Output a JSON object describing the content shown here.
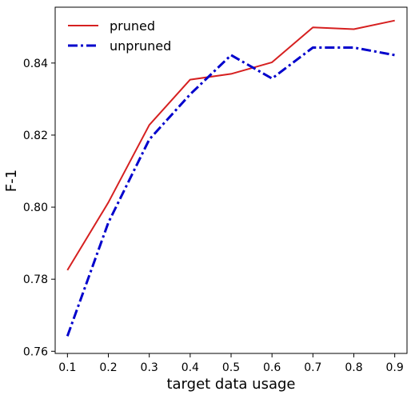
{
  "chart_data": {
    "type": "line",
    "xlabel": "target data usage",
    "ylabel": "F-1",
    "x": [
      0.1,
      0.2,
      0.3,
      0.4,
      0.5,
      0.6,
      0.7,
      0.8,
      0.9
    ],
    "x_ticks": [
      "0.1",
      "0.2",
      "0.3",
      "0.4",
      "0.5",
      "0.6",
      "0.7",
      "0.8",
      "0.9"
    ],
    "y_ticks": [
      "0.76",
      "0.78",
      "0.80",
      "0.82",
      "0.84"
    ],
    "y_tick_values": [
      0.76,
      0.78,
      0.8,
      0.82,
      0.84
    ],
    "xlim": [
      0.07,
      0.93
    ],
    "ylim": [
      0.7594,
      0.8555
    ],
    "grid": false,
    "legend_position": "top-left",
    "series": [
      {
        "name": "pruned",
        "color": "#d62020",
        "style": "solid",
        "values": [
          0.7825,
          0.8013,
          0.8228,
          0.8354,
          0.837,
          0.8402,
          0.8499,
          0.8494,
          0.8518
        ]
      },
      {
        "name": "unpruned",
        "color": "#0000cc",
        "style": "dashdot",
        "values": [
          0.7642,
          0.7957,
          0.8188,
          0.8313,
          0.8422,
          0.8357,
          0.8443,
          0.8443,
          0.8422
        ]
      }
    ]
  }
}
